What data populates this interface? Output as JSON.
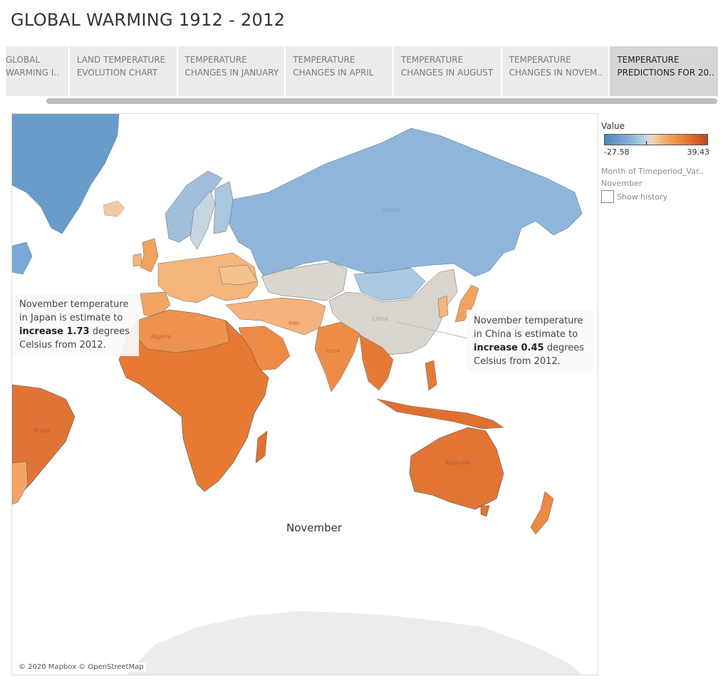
{
  "page": {
    "title": "GLOBAL WARMING 1912 - 2012"
  },
  "tabs": [
    {
      "line1": "GLOBAL",
      "line2": "WARMING I..",
      "active": false
    },
    {
      "line1": "LAND TEMPERATURE",
      "line2": "EVOLUTION CHART",
      "active": false
    },
    {
      "line1": "TEMPERATURE",
      "line2": "CHANGES IN JANUARY",
      "active": false
    },
    {
      "line1": "TEMPERATURE",
      "line2": "CHANGES IN APRIL",
      "active": false
    },
    {
      "line1": "TEMPERATURE",
      "line2": "CHANGES IN AUGUST",
      "active": false
    },
    {
      "line1": "TEMPERATURE",
      "line2": "CHANGES IN NOVEM..",
      "active": false
    },
    {
      "line1": "TEMPERATURE",
      "line2": "PREDICTIONS FOR 20..",
      "active": true
    }
  ],
  "map": {
    "month_label": "November",
    "credit": "© 2020 Mapbox © OpenStreetMap",
    "country_labels": [
      "Russia",
      "China",
      "India",
      "Algeria",
      "Australia",
      "Brazil",
      "Iran"
    ],
    "colors": {
      "cold": "#4a85bf",
      "cool": "#8fb6da",
      "neutral": "#d8d4cc",
      "warm": "#f4a35c",
      "hot": "#e06a2c",
      "water": "#ffffff",
      "antarctica": "#ececec"
    }
  },
  "annotations": {
    "japan": {
      "pre": "November temperature in Japan is estimate to",
      "bold": "increase 1.73",
      "post": "degrees Celsius from 2012."
    },
    "china": {
      "pre": "November temperature in China is estimate to",
      "bold": "increase 0.45",
      "post": "degrees Celsius from 2012."
    }
  },
  "legend": {
    "title": "Value",
    "min": "-27.58",
    "max": "39.43",
    "filter_label": "Month of Timeperiod_Var..",
    "filter_value": "November",
    "history_label": "Show history"
  }
}
